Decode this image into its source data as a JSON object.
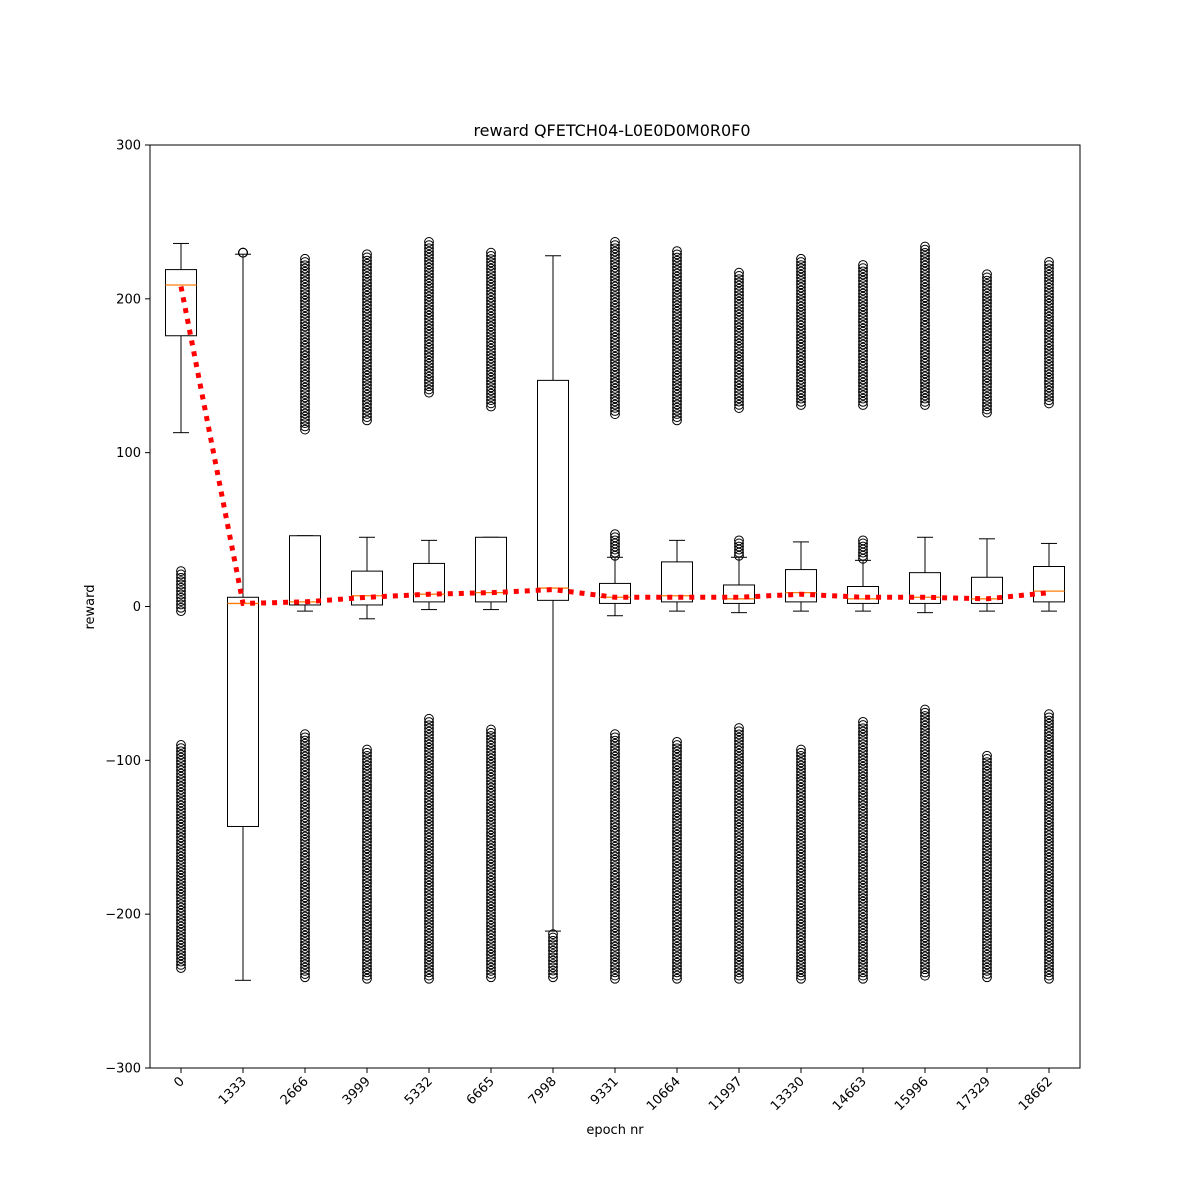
{
  "chart_data": {
    "type": "box",
    "title": "reward QFETCH04-L0E0D0M0R0F0",
    "xlabel": "epoch nr",
    "ylabel": "reward",
    "ylim": [
      -300,
      300
    ],
    "yticks": [
      -300,
      -200,
      -100,
      0,
      100,
      200,
      300
    ],
    "categories": [
      "0",
      "1333",
      "2666",
      "3999",
      "5332",
      "6665",
      "7998",
      "9331",
      "10664",
      "11997",
      "13330",
      "14663",
      "15996",
      "17329",
      "18662"
    ],
    "boxes": [
      {
        "q1": 176,
        "median": 209,
        "q3": 219,
        "whisker_low": 113,
        "whisker_high": 236,
        "outliers_low": [
          -235,
          -90
        ],
        "outliers_mid": [
          -3,
          23
        ],
        "outliers_high": []
      },
      {
        "q1": -143,
        "median": 2,
        "q3": 6,
        "whisker_low": -243,
        "whisker_high": 229,
        "outliers_low": [],
        "outliers_mid": [],
        "outliers_high": [
          230,
          230
        ]
      },
      {
        "q1": 1,
        "median": 3,
        "q3": 46,
        "whisker_low": -3,
        "whisker_high": 46,
        "outliers_low": [
          -241,
          -83
        ],
        "outliers_mid": [],
        "outliers_high": [
          115,
          226
        ]
      },
      {
        "q1": 1,
        "median": 7,
        "q3": 23,
        "whisker_low": -8,
        "whisker_high": 45,
        "outliers_low": [
          -242,
          -93
        ],
        "outliers_mid": [],
        "outliers_high": [
          121,
          229
        ]
      },
      {
        "q1": 3,
        "median": 8,
        "q3": 28,
        "whisker_low": -2,
        "whisker_high": 43,
        "outliers_low": [
          -242,
          -73
        ],
        "outliers_mid": [],
        "outliers_high": [
          139,
          237
        ]
      },
      {
        "q1": 3,
        "median": 9,
        "q3": 45,
        "whisker_low": -2,
        "whisker_high": 45,
        "outliers_low": [
          -241,
          -80
        ],
        "outliers_mid": [],
        "outliers_high": [
          130,
          230
        ]
      },
      {
        "q1": 4,
        "median": 12,
        "q3": 147,
        "whisker_low": -211,
        "whisker_high": 228,
        "outliers_low": [
          -241,
          -213
        ],
        "outliers_mid": [],
        "outliers_high": []
      },
      {
        "q1": 2,
        "median": 6,
        "q3": 15,
        "whisker_low": -6,
        "whisker_high": 32,
        "outliers_low": [
          -242,
          -83
        ],
        "outliers_mid": [
          33,
          47
        ],
        "outliers_high": [
          125,
          237
        ]
      },
      {
        "q1": 3,
        "median": 7,
        "q3": 29,
        "whisker_low": -3,
        "whisker_high": 43,
        "outliers_low": [
          -242,
          -88
        ],
        "outliers_mid": [],
        "outliers_high": [
          121,
          231
        ]
      },
      {
        "q1": 2,
        "median": 5,
        "q3": 14,
        "whisker_low": -4,
        "whisker_high": 32,
        "outliers_low": [
          -242,
          -79
        ],
        "outliers_mid": [
          33,
          43
        ],
        "outliers_high": [
          129,
          217
        ]
      },
      {
        "q1": 3,
        "median": 9,
        "q3": 24,
        "whisker_low": -3,
        "whisker_high": 42,
        "outliers_low": [
          -242,
          -93
        ],
        "outliers_mid": [],
        "outliers_high": [
          131,
          226
        ]
      },
      {
        "q1": 2,
        "median": 5,
        "q3": 13,
        "whisker_low": -3,
        "whisker_high": 30,
        "outliers_low": [
          -242,
          -75
        ],
        "outliers_mid": [
          31,
          43
        ],
        "outliers_high": [
          131,
          222
        ]
      },
      {
        "q1": 2,
        "median": 6,
        "q3": 22,
        "whisker_low": -4,
        "whisker_high": 45,
        "outliers_low": [
          -240,
          -67
        ],
        "outliers_mid": [],
        "outliers_high": [
          131,
          234
        ]
      },
      {
        "q1": 2,
        "median": 5,
        "q3": 19,
        "whisker_low": -3,
        "whisker_high": 44,
        "outliers_low": [
          -241,
          -97
        ],
        "outliers_mid": [],
        "outliers_high": [
          126,
          216
        ]
      },
      {
        "q1": 3,
        "median": 10,
        "q3": 26,
        "whisker_low": -3,
        "whisker_high": 41,
        "outliers_low": [
          -242,
          -70
        ],
        "outliers_mid": [],
        "outliers_high": [
          132,
          224
        ]
      }
    ],
    "mean_line": [
      208,
      2,
      3,
      6,
      8,
      9,
      11,
      6,
      6,
      6,
      8,
      6,
      6,
      5,
      9
    ],
    "mean_line_color": "#ff0000",
    "median_color": "#ff7f0e"
  }
}
